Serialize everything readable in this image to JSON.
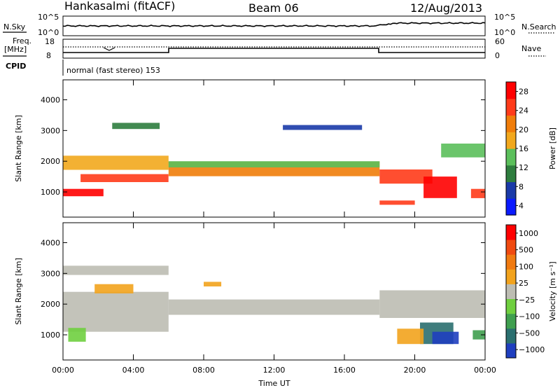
{
  "header": {
    "station": "Hankasalmi (fitACF)",
    "beam": "Beam 06",
    "date": "12/Aug/2013"
  },
  "noise_panel": {
    "left_label": "N.Sky",
    "right_label": "N.Search",
    "left_ticks": [
      "10^5",
      "10^0"
    ],
    "right_ticks": [
      "10^5",
      "10^0"
    ]
  },
  "freq_panel": {
    "left_label_line1": "Freq.",
    "left_label_line2": "[MHz]",
    "right_label": "Nave",
    "left_ticks": [
      "18",
      "8"
    ],
    "right_ticks": [
      "60",
      "0"
    ]
  },
  "cpid": {
    "label": "CPID",
    "value": "normal (fast stereo) 153"
  },
  "colors": {
    "power": [
      "#0a1aff",
      "#1a3aa8",
      "#2e7d3e",
      "#5bbf5b",
      "#f2a81d",
      "#f07d0a",
      "#ff3b1a",
      "#ff0000"
    ],
    "velocity": [
      "#1f3fbf",
      "#2a6f6f",
      "#3f9f4f",
      "#6fcf3f",
      "#bdbdb3",
      "#f2a31d",
      "#f07a10",
      "#f04a10",
      "#ff0000"
    ]
  },
  "chart_data": [
    {
      "type": "heatmap",
      "name": "power",
      "ylabel": "Slant Range [km]",
      "xlabel": "",
      "x_ticks": [
        "00:00",
        "04:00",
        "08:00",
        "12:00",
        "16:00",
        "20:00",
        "00:00"
      ],
      "y_ticks": [
        "1000",
        "2000",
        "3000",
        "4000"
      ],
      "y_range": [
        180,
        4650
      ],
      "x_range_hours": [
        0,
        24
      ],
      "colorbar": {
        "label": "Power [dB]",
        "ticks": [
          "28",
          "24",
          "20",
          "16",
          "12",
          "8",
          "4"
        ],
        "range": [
          0,
          32
        ]
      },
      "features": [
        {
          "start_h": 0.0,
          "end_h": 2.3,
          "center_km": 980,
          "width_km": 240,
          "level": 7
        },
        {
          "start_h": 0.0,
          "end_h": 6.0,
          "center_km": 1950,
          "width_km": 460,
          "level": 4
        },
        {
          "start_h": 1.0,
          "end_h": 6.0,
          "center_km": 1450,
          "width_km": 260,
          "level": 6
        },
        {
          "start_h": 6.0,
          "end_h": 18.0,
          "center_km": 1750,
          "width_km": 480,
          "level": 5
        },
        {
          "start_h": 6.0,
          "end_h": 18.0,
          "center_km": 1900,
          "width_km": 200,
          "level": 3
        },
        {
          "start_h": 18.0,
          "end_h": 21.0,
          "center_km": 1500,
          "width_km": 460,
          "level": 6
        },
        {
          "start_h": 18.0,
          "end_h": 20.0,
          "center_km": 650,
          "width_km": 140,
          "level": 6
        },
        {
          "start_h": 20.5,
          "end_h": 22.4,
          "center_km": 1150,
          "width_km": 700,
          "level": 7
        },
        {
          "start_h": 23.2,
          "end_h": 24.0,
          "center_km": 950,
          "width_km": 300,
          "level": 6
        },
        {
          "start_h": 21.5,
          "end_h": 24.0,
          "center_km": 2350,
          "width_km": 450,
          "level": 3
        },
        {
          "start_h": 2.8,
          "end_h": 5.5,
          "center_km": 3150,
          "width_km": 200,
          "level": 2
        },
        {
          "start_h": 12.5,
          "end_h": 17.0,
          "center_km": 3100,
          "width_km": 160,
          "level": 1
        }
      ]
    },
    {
      "type": "heatmap",
      "name": "velocity",
      "ylabel": "Slant Range [km]",
      "xlabel": "Time UT",
      "x_ticks": [
        "00:00",
        "04:00",
        "08:00",
        "12:00",
        "16:00",
        "20:00",
        "00:00"
      ],
      "y_ticks": [
        "1000",
        "2000",
        "3000",
        "4000"
      ],
      "y_range": [
        180,
        4650
      ],
      "x_range_hours": [
        0,
        24
      ],
      "colorbar": {
        "label": "Velocity [m s⁻¹]",
        "ticks": [
          "1000",
          "500",
          "100",
          "25",
          "−25",
          "−100",
          "−500",
          "−1000"
        ]
      },
      "features": [
        {
          "start_h": 0.0,
          "end_h": 6.0,
          "center_km": 1750,
          "width_km": 1300,
          "level": 4
        },
        {
          "start_h": 6.0,
          "end_h": 18.0,
          "center_km": 1900,
          "width_km": 500,
          "level": 4
        },
        {
          "start_h": 18.0,
          "end_h": 24.0,
          "center_km": 2000,
          "width_km": 900,
          "level": 4
        },
        {
          "start_h": 0.0,
          "end_h": 6.0,
          "center_km": 3100,
          "width_km": 300,
          "level": 4
        },
        {
          "start_h": 0.3,
          "end_h": 1.3,
          "center_km": 1000,
          "width_km": 450,
          "level": 3
        },
        {
          "start_h": 1.8,
          "end_h": 4.0,
          "center_km": 2500,
          "width_km": 300,
          "level": 5
        },
        {
          "start_h": 8.0,
          "end_h": 9.0,
          "center_km": 2650,
          "width_km": 150,
          "level": 5
        },
        {
          "start_h": 20.3,
          "end_h": 22.2,
          "center_km": 1050,
          "width_km": 700,
          "level": 1
        },
        {
          "start_h": 21.0,
          "end_h": 22.5,
          "center_km": 900,
          "width_km": 400,
          "level": 0
        },
        {
          "start_h": 19.0,
          "end_h": 20.5,
          "center_km": 950,
          "width_km": 500,
          "level": 5
        },
        {
          "start_h": 23.3,
          "end_h": 24.0,
          "center_km": 1000,
          "width_km": 300,
          "level": 2
        }
      ]
    }
  ]
}
